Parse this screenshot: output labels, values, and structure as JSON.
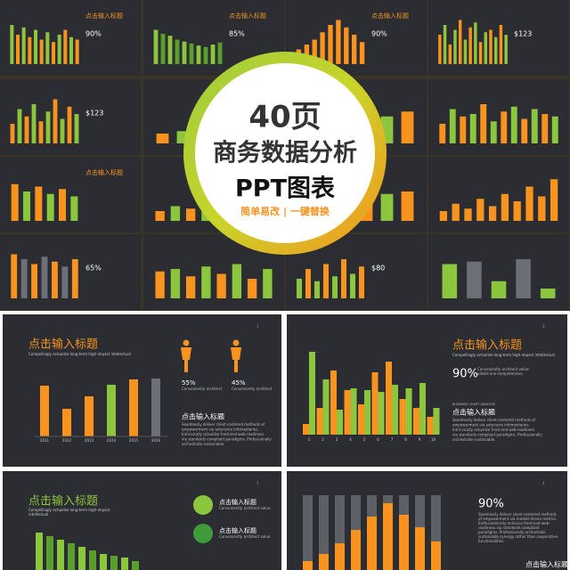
{
  "banner": {
    "count": "40页",
    "title": "商务数据分析",
    "subtitle": "PPT图表",
    "tagline": "简单易改 | 一键替换"
  },
  "thumbnails": [
    {
      "bars": [
        80,
        60,
        75,
        55,
        70,
        50,
        65,
        45,
        60,
        70,
        55,
        50
      ],
      "colors": [
        "#8cc63f",
        "#f7931e"
      ],
      "label": "点击输入标题",
      "big": "90%"
    },
    {
      "bars": [
        70,
        62,
        58,
        50,
        46,
        42,
        38,
        35,
        40,
        44
      ],
      "colors": [
        "#8cc63f",
        "#5a9e2f"
      ],
      "label": "点击输入标题",
      "big": "85%"
    },
    {
      "bars": [
        30,
        40,
        50,
        65,
        80,
        90,
        75,
        60,
        45
      ],
      "colors": [
        "#f7931e",
        "#f7931e"
      ],
      "label": "点击输入标题",
      "big": "90%"
    },
    {
      "bars": [
        60,
        80,
        40,
        70,
        90,
        50,
        75,
        85,
        45,
        65,
        70,
        55,
        80,
        60
      ],
      "colors": [
        "#f7931e",
        "#8cc63f"
      ],
      "big": "$123"
    },
    {
      "bars": [
        40,
        70,
        55,
        80,
        45,
        65,
        90,
        50,
        75,
        60
      ],
      "colors": [
        "#f7931e",
        "#8cc63f"
      ],
      "big": "$123"
    },
    {
      "bars": [
        20,
        25,
        30,
        35,
        40,
        45
      ],
      "colors": [
        "#f7931e",
        "#8cc63f"
      ]
    },
    {
      "bars": [
        50,
        60,
        45,
        70,
        55,
        65
      ],
      "colors": [
        "#8cc63f",
        "#f7931e"
      ]
    },
    {
      "bars": [
        40,
        70,
        55,
        60,
        80,
        45,
        65,
        75,
        50,
        70,
        60,
        55
      ],
      "colors": [
        "#f7931e",
        "#8cc63f"
      ]
    },
    {
      "bars": [
        75,
        60,
        70,
        55,
        65,
        50
      ],
      "colors": [
        "#f7931e",
        "#8cc63f"
      ],
      "label": "点击输入标题"
    },
    {
      "bars": [
        20,
        30,
        25,
        35,
        30,
        40,
        35,
        45
      ],
      "colors": [
        "#f7931e",
        "#8cc63f"
      ]
    },
    {
      "bars": [
        30,
        40,
        50,
        45,
        55,
        60
      ],
      "colors": [
        "#8cc63f",
        "#f7931e"
      ]
    },
    {
      "bars": [
        20,
        35,
        25,
        45,
        30,
        55,
        40,
        70,
        50,
        85
      ],
      "colors": [
        "#f7931e",
        "#f7931e"
      ]
    },
    {
      "bars": [
        90,
        80,
        70,
        85,
        75,
        65,
        80
      ],
      "colors": [
        "#f7931e",
        "#6d6f76"
      ],
      "big": "65%"
    },
    {
      "bars": [
        55,
        60,
        45,
        65,
        50,
        70,
        40,
        60
      ],
      "colors": [
        "#f7931e",
        "#8cc63f"
      ]
    },
    {
      "bars": [
        40,
        60,
        35,
        70,
        45,
        80,
        50,
        65
      ],
      "colors": [
        "#8cc63f",
        "#f7931e"
      ],
      "big": "$80"
    },
    {
      "bars": [
        70,
        75,
        35,
        80,
        20
      ],
      "colors": [
        "#8cc63f",
        "#6d6f76"
      ]
    }
  ],
  "slides": [
    {
      "page": "1",
      "title": "点击输入标题",
      "subtitle": "Compellingly actualize long-term high-impact intellectual",
      "chart": {
        "categories": [
          "2011",
          "2012",
          "2013",
          "2014",
          "2015",
          "2016"
        ],
        "values": [
          57,
          31,
          45,
          58,
          64,
          65
        ],
        "colors": [
          "#f7931e",
          "#f7931e",
          "#f7931e",
          "#8cc63f",
          "#f7931e",
          "#6d6f76"
        ]
      },
      "stats": [
        {
          "value": "55%",
          "text": "Conveniently architect"
        },
        {
          "value": "45%",
          "text": "Conveniently architect"
        }
      ],
      "heading": "点击输入标题",
      "paragraph": [
        "Seamlessly deliver client-centered methods of",
        "empowerment via extensive infomediaries.",
        "Intrinsically actualize front-end web-readiness",
        "via standards compliant paradigms. Professionally",
        "orchestrate sustainable."
      ]
    },
    {
      "page": "2",
      "title": "点击输入标题",
      "subtitle": "Compellingly actualize long-term high-impact intellectual",
      "chart": {
        "categories": [
          "1",
          "2",
          "3",
          "4",
          "5",
          "6",
          "7",
          "8",
          "9",
          "10"
        ],
        "series": [
          {
            "color": "#8cc63f",
            "values": [
              93,
              62,
              28,
              52,
              50,
              48,
              56,
              52,
              58,
              30
            ]
          },
          {
            "color": "#f7931e",
            "values": [
              12,
              30,
              72,
              50,
              34,
              70,
              82,
              40,
              30,
              20
            ]
          }
        ]
      },
      "big": "90%",
      "big_text": [
        "Conveniently architect value-",
        "added one-competencies"
      ],
      "caption": "BUSINESS CHART ANALYSIS",
      "heading": "点击输入标题",
      "paragraph": [
        "Seamlessly deliver client-centered methods of",
        "empowerment via extensive infomediaries.",
        "Intrinsically actualize front-end web-readiness",
        "via standards compliant paradigms. Professionally",
        "orchestrate sustainable."
      ]
    },
    {
      "page": "3",
      "title": "点击输入标题",
      "subtitle": [
        "Compellingly actualize long-term high-impact",
        "intellectual"
      ],
      "chart": {
        "values": [
          42,
          38,
          34,
          30,
          26,
          22,
          18,
          16,
          14,
          10
        ],
        "colors": [
          "#8cc63f",
          "#5a9e2f"
        ]
      },
      "items": [
        {
          "heading": "点击输入标题",
          "text": "Conveniently architect value"
        },
        {
          "heading": "点击输入标题",
          "text": "Conveniently architect value"
        }
      ]
    },
    {
      "page": "4",
      "chart": {
        "values": [
          10,
          18,
          30,
          45,
          60,
          75,
          62,
          48,
          32
        ],
        "color": "#f7931e",
        "background": "#5d5f66"
      },
      "big": "90%",
      "paragraph": [
        "Seamlessly deliver client-centered methods",
        "of empowerment via market-driven metrics.",
        "Enthusiastically enhance front-end web-",
        "readiness via standards compliant",
        "paradigms. Professionally orchestrate",
        "sustainable synergy rather than cooperative",
        "functionalities."
      ],
      "heading": "点击输入标题"
    }
  ]
}
